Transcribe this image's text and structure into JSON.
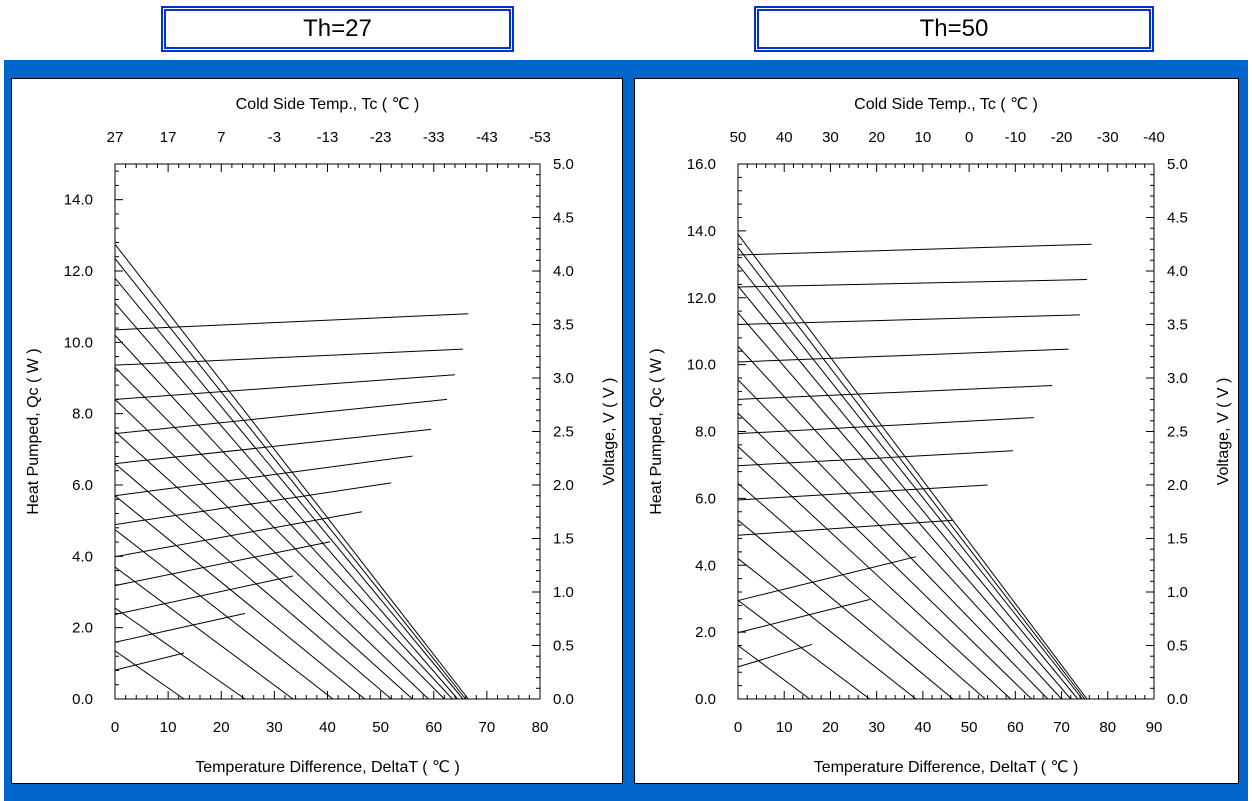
{
  "panels": [
    {
      "title": "Th=27"
    },
    {
      "title": "Th=50"
    }
  ],
  "colors": {
    "band": "#0066cc",
    "title_border": "#0033cc",
    "line": "#000000"
  },
  "chart_data": [
    {
      "type": "line",
      "title": "Th=27",
      "xlabel": "Temperature Difference, DeltaT ( ℃ )",
      "x2label": "Cold Side Temp., Tc ( ℃ )",
      "ylabel": "Heat Pumped, Qc ( W )",
      "y2label": "Voltage, V ( V )",
      "xlim": [
        0,
        80
      ],
      "ylim": [
        0,
        15.0
      ],
      "y2lim": [
        0,
        5.0
      ],
      "x_ticks": [
        "0",
        "10",
        "20",
        "30",
        "40",
        "50",
        "60",
        "70",
        "80"
      ],
      "x2_ticks": [
        "27",
        "17",
        "7",
        "-3",
        "-13",
        "-23",
        "-33",
        "-43",
        "-53"
      ],
      "y_ticks": [
        "0.0",
        "2.0",
        "4.0",
        "6.0",
        "8.0",
        "10.0",
        "12.0",
        "14.0"
      ],
      "y2_ticks": [
        "0.0",
        "0.5",
        "1.0",
        "1.5",
        "2.0",
        "2.5",
        "3.0",
        "3.5",
        "4.0",
        "4.5",
        "5.0"
      ],
      "qc_lines": [
        {
          "x": [
            0,
            13
          ],
          "y": [
            1.35,
            0
          ]
        },
        {
          "x": [
            0,
            24.5
          ],
          "y": [
            2.55,
            0
          ]
        },
        {
          "x": [
            0,
            33.5
          ],
          "y": [
            3.7,
            0
          ]
        },
        {
          "x": [
            0,
            41
          ],
          "y": [
            4.75,
            0
          ]
        },
        {
          "x": [
            0,
            47
          ],
          "y": [
            5.7,
            0
          ]
        },
        {
          "x": [
            0,
            52
          ],
          "y": [
            6.6,
            0
          ]
        },
        {
          "x": [
            0,
            56
          ],
          "y": [
            7.5,
            0
          ]
        },
        {
          "x": [
            0,
            59
          ],
          "y": [
            8.4,
            0
          ]
        },
        {
          "x": [
            0,
            62
          ],
          "y": [
            9.3,
            0
          ]
        },
        {
          "x": [
            0,
            63.5
          ],
          "y": [
            10.2,
            0
          ]
        },
        {
          "x": [
            0,
            64.5
          ],
          "y": [
            11.1,
            0
          ]
        },
        {
          "x": [
            0,
            65.5
          ],
          "y": [
            11.8,
            0
          ]
        },
        {
          "x": [
            0,
            66
          ],
          "y": [
            12.35,
            0
          ]
        },
        {
          "x": [
            0,
            66.5
          ],
          "y": [
            12.75,
            0
          ]
        }
      ],
      "v_lines": [
        {
          "x": [
            0,
            13
          ],
          "y": [
            0.27,
            0.43
          ]
        },
        {
          "x": [
            0,
            24.5
          ],
          "y": [
            0.53,
            0.8
          ]
        },
        {
          "x": [
            0,
            33.5
          ],
          "y": [
            0.79,
            1.15
          ]
        },
        {
          "x": [
            0,
            40.5
          ],
          "y": [
            1.06,
            1.47
          ]
        },
        {
          "x": [
            0,
            46.5
          ],
          "y": [
            1.33,
            1.75
          ]
        },
        {
          "x": [
            0,
            52
          ],
          "y": [
            1.63,
            2.02
          ]
        },
        {
          "x": [
            0,
            56
          ],
          "y": [
            1.9,
            2.27
          ]
        },
        {
          "x": [
            0,
            59.5
          ],
          "y": [
            2.2,
            2.52
          ]
        },
        {
          "x": [
            0,
            62.5
          ],
          "y": [
            2.48,
            2.8
          ]
        },
        {
          "x": [
            0,
            64
          ],
          "y": [
            2.8,
            3.03
          ]
        },
        {
          "x": [
            0,
            65.5
          ],
          "y": [
            3.12,
            3.27
          ]
        },
        {
          "x": [
            0,
            66.5
          ],
          "y": [
            3.45,
            3.6
          ]
        }
      ]
    },
    {
      "type": "line",
      "title": "Th=50",
      "xlabel": "Temperature Difference, DeltaT ( ℃ )",
      "x2label": "Cold Side Temp., Tc ( ℃ )",
      "ylabel": "Heat Pumped, Qc ( W )",
      "y2label": "Voltage, V ( V )",
      "xlim": [
        0,
        90
      ],
      "ylim": [
        0,
        16.0
      ],
      "y2lim": [
        0,
        5.0
      ],
      "x_ticks": [
        "0",
        "10",
        "20",
        "30",
        "40",
        "50",
        "60",
        "70",
        "80",
        "90"
      ],
      "x2_ticks": [
        "50",
        "40",
        "30",
        "20",
        "10",
        "0",
        "-10",
        "-20",
        "-30",
        "-40"
      ],
      "y_ticks": [
        "0.0",
        "2.0",
        "4.0",
        "6.0",
        "8.0",
        "10.0",
        "12.0",
        "14.0",
        "16.0"
      ],
      "y2_ticks": [
        "0.0",
        "0.5",
        "1.0",
        "1.5",
        "2.0",
        "2.5",
        "3.0",
        "3.5",
        "4.0",
        "4.5",
        "5.0"
      ],
      "qc_lines": [
        {
          "x": [
            0,
            15.5
          ],
          "y": [
            1.6,
            0
          ]
        },
        {
          "x": [
            0,
            28.5
          ],
          "y": [
            2.95,
            0
          ]
        },
        {
          "x": [
            0,
            38.5
          ],
          "y": [
            4.2,
            0
          ]
        },
        {
          "x": [
            0,
            46.5
          ],
          "y": [
            5.35,
            0
          ]
        },
        {
          "x": [
            0,
            53.5
          ],
          "y": [
            6.45,
            0
          ]
        },
        {
          "x": [
            0,
            59
          ],
          "y": [
            7.55,
            0
          ]
        },
        {
          "x": [
            0,
            63.5
          ],
          "y": [
            8.55,
            0
          ]
        },
        {
          "x": [
            0,
            67
          ],
          "y": [
            9.55,
            0
          ]
        },
        {
          "x": [
            0,
            70
          ],
          "y": [
            10.55,
            0
          ]
        },
        {
          "x": [
            0,
            72
          ],
          "y": [
            11.55,
            0
          ]
        },
        {
          "x": [
            0,
            73.5
          ],
          "y": [
            12.35,
            0
          ]
        },
        {
          "x": [
            0,
            74.5
          ],
          "y": [
            13.0,
            0
          ]
        },
        {
          "x": [
            0,
            75
          ],
          "y": [
            13.5,
            0
          ]
        },
        {
          "x": [
            0,
            75.5
          ],
          "y": [
            13.9,
            0
          ]
        }
      ],
      "v_lines": [
        {
          "x": [
            0,
            16
          ],
          "y": [
            0.3,
            0.51
          ]
        },
        {
          "x": [
            0,
            28.5
          ],
          "y": [
            0.62,
            0.93
          ]
        },
        {
          "x": [
            0,
            38.5
          ],
          "y": [
            0.92,
            1.33
          ]
        },
        {
          "x": [
            0,
            46.5
          ],
          "y": [
            1.53,
            1.67
          ]
        },
        {
          "x": [
            0,
            54
          ],
          "y": [
            1.86,
            2.0
          ]
        },
        {
          "x": [
            0,
            59.5
          ],
          "y": [
            2.18,
            2.32
          ]
        },
        {
          "x": [
            0,
            64
          ],
          "y": [
            2.48,
            2.63
          ]
        },
        {
          "x": [
            0,
            68
          ],
          "y": [
            2.8,
            2.93
          ]
        },
        {
          "x": [
            0,
            71.5
          ],
          "y": [
            3.15,
            3.27
          ]
        },
        {
          "x": [
            0,
            74
          ],
          "y": [
            3.5,
            3.59
          ]
        },
        {
          "x": [
            0,
            75.5
          ],
          "y": [
            3.85,
            3.92
          ]
        },
        {
          "x": [
            0,
            76.5
          ],
          "y": [
            4.15,
            4.25
          ]
        }
      ]
    }
  ]
}
